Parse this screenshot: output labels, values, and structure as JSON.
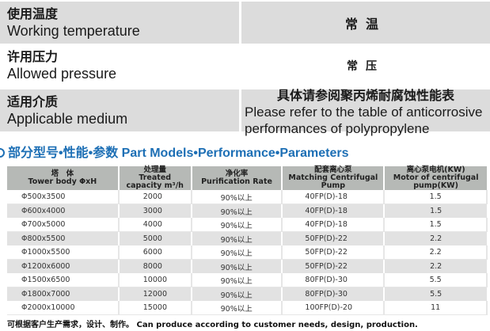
{
  "specs": [
    {
      "label_cn": "使用温度",
      "label_en": "Working temperature",
      "value_cn": "常温",
      "value_en": ""
    },
    {
      "label_cn": "许用压力",
      "label_en": "Allowed pressure",
      "value_cn": "常压",
      "value_en": ""
    },
    {
      "label_cn": "适用介质",
      "label_en": "Applicable medium",
      "value_cn": "具体请参阅聚丙烯耐腐蚀性能表",
      "value_en": "Please refer to the table of anticorrosive performances of polypropylene"
    }
  ],
  "heading": "部分型号•性能•参数 Part Models•Performance•Parameters",
  "table": {
    "headers": [
      {
        "cn": "塔　体",
        "en": "Tower body ΦxH"
      },
      {
        "cn": "处理量",
        "en": "Treated capacity m³/h"
      },
      {
        "cn": "净化率",
        "en": "Purification Rate"
      },
      {
        "cn": "配套离心泵",
        "en": "Matching Centrifugal Pump"
      },
      {
        "cn": "离心泵电机(KW)",
        "en": "Motor of centrifugal pump(KW)"
      }
    ],
    "rows": [
      [
        "Φ500x3500",
        "2000",
        "90%以上",
        "40FP(D)-18",
        "1.5"
      ],
      [
        "Φ600x4000",
        "3000",
        "90%以上",
        "40FP(D)-18",
        "1.5"
      ],
      [
        "Φ700x5000",
        "4000",
        "90%以上",
        "40FP(D)-18",
        "1.5"
      ],
      [
        "Φ800x5500",
        "5000",
        "90%以上",
        "50FP(D)-22",
        "2.2"
      ],
      [
        "Φ1000x5500",
        "6000",
        "90%以上",
        "50FP(D)-22",
        "2.2"
      ],
      [
        "Φ1200x6000",
        "8000",
        "90%以上",
        "50FP(D)-22",
        "2.2"
      ],
      [
        "Φ1500x6500",
        "10000",
        "90%以上",
        "80FP(D)-30",
        "5.5"
      ],
      [
        "Φ1800x7000",
        "12000",
        "90%以上",
        "80FP(D)-30",
        "5.5"
      ],
      [
        "Φ2000x10000",
        "15000",
        "90%以上",
        "100FP(D)-20",
        "11"
      ]
    ]
  },
  "footer": "可根据客户生产需求，设计、制作。 Can produce according to customer needs, design, production.",
  "colors": {
    "accent": "#1d6fb5",
    "header_bg": "#b6b9b6",
    "stripe": "#e2e2e2"
  }
}
